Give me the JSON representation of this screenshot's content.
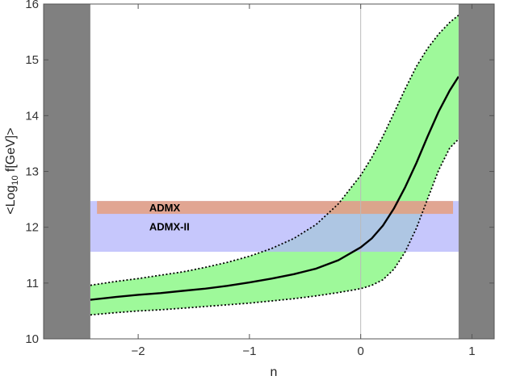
{
  "chart_data": {
    "type": "line",
    "xlabel": "n",
    "ylabel": "<Log",
    "ylabel_sub": "10",
    "ylabel_rest": " f[GeV]>",
    "xlim": [
      -2.85,
      1.2
    ],
    "ylim": [
      10,
      16
    ],
    "x_ticks": [
      -2,
      -1,
      0,
      1
    ],
    "x_tick_labels": [
      "−2",
      "−1",
      "0",
      "1"
    ],
    "y_ticks": [
      10,
      11,
      12,
      13,
      14,
      15,
      16
    ],
    "y_tick_labels": [
      "10",
      "11",
      "12",
      "13",
      "14",
      "15",
      "16"
    ],
    "excluded_regions": [
      {
        "x_range": [
          -2.85,
          -2.43
        ],
        "color": "#808080"
      },
      {
        "x_range": [
          0.88,
          1.2
        ],
        "color": "#808080"
      }
    ],
    "bands": [
      {
        "label": "ADMX-II",
        "x_range": [
          -2.43,
          0.88
        ],
        "y_range": [
          11.56,
          12.47
        ],
        "color": "#b3b4fb"
      },
      {
        "label": "ADMX",
        "x_range": [
          -2.37,
          0.83
        ],
        "y_range": [
          12.24,
          12.47
        ],
        "color": "#e99a6f"
      }
    ],
    "series": [
      {
        "role": "central",
        "style": "solid",
        "color": "#000000",
        "x": [
          -2.43,
          -2.2,
          -2.0,
          -1.8,
          -1.6,
          -1.4,
          -1.2,
          -1.0,
          -0.8,
          -0.6,
          -0.4,
          -0.2,
          0.0,
          0.1,
          0.2,
          0.3,
          0.4,
          0.5,
          0.6,
          0.7,
          0.8,
          0.88
        ],
        "y": [
          10.7,
          10.75,
          10.79,
          10.82,
          10.86,
          10.9,
          10.95,
          11.01,
          11.08,
          11.16,
          11.26,
          11.41,
          11.64,
          11.8,
          12.03,
          12.34,
          12.72,
          13.15,
          13.62,
          14.07,
          14.45,
          14.7
        ]
      },
      {
        "role": "band-upper",
        "style": "dotted",
        "color": "#000000",
        "x": [
          -2.43,
          -2.2,
          -2.0,
          -1.8,
          -1.6,
          -1.4,
          -1.2,
          -1.0,
          -0.8,
          -0.6,
          -0.4,
          -0.2,
          0.0,
          0.1,
          0.2,
          0.3,
          0.4,
          0.5,
          0.6,
          0.7,
          0.8,
          0.88
        ],
        "y": [
          10.96,
          11.03,
          11.08,
          11.14,
          11.2,
          11.28,
          11.37,
          11.48,
          11.62,
          11.8,
          12.05,
          12.42,
          12.93,
          13.25,
          13.63,
          14.05,
          14.48,
          14.88,
          15.2,
          15.46,
          15.67,
          15.8
        ]
      },
      {
        "role": "band-lower",
        "style": "dotted",
        "color": "#000000",
        "x": [
          -2.43,
          -2.2,
          -2.0,
          -1.8,
          -1.6,
          -1.4,
          -1.2,
          -1.0,
          -0.8,
          -0.6,
          -0.4,
          -0.2,
          0.0,
          0.1,
          0.2,
          0.3,
          0.4,
          0.5,
          0.6,
          0.7,
          0.8,
          0.88
        ],
        "y": [
          10.43,
          10.47,
          10.5,
          10.52,
          10.55,
          10.58,
          10.61,
          10.64,
          10.68,
          10.72,
          10.77,
          10.83,
          10.9,
          10.96,
          11.06,
          11.25,
          11.56,
          11.98,
          12.5,
          13.02,
          13.42,
          13.58
        ]
      }
    ],
    "fill_between_color": "#9ef99a",
    "vertical_reference_line": {
      "x": 0,
      "color": "#bbbbbb"
    },
    "grid": false,
    "legend": "none"
  }
}
